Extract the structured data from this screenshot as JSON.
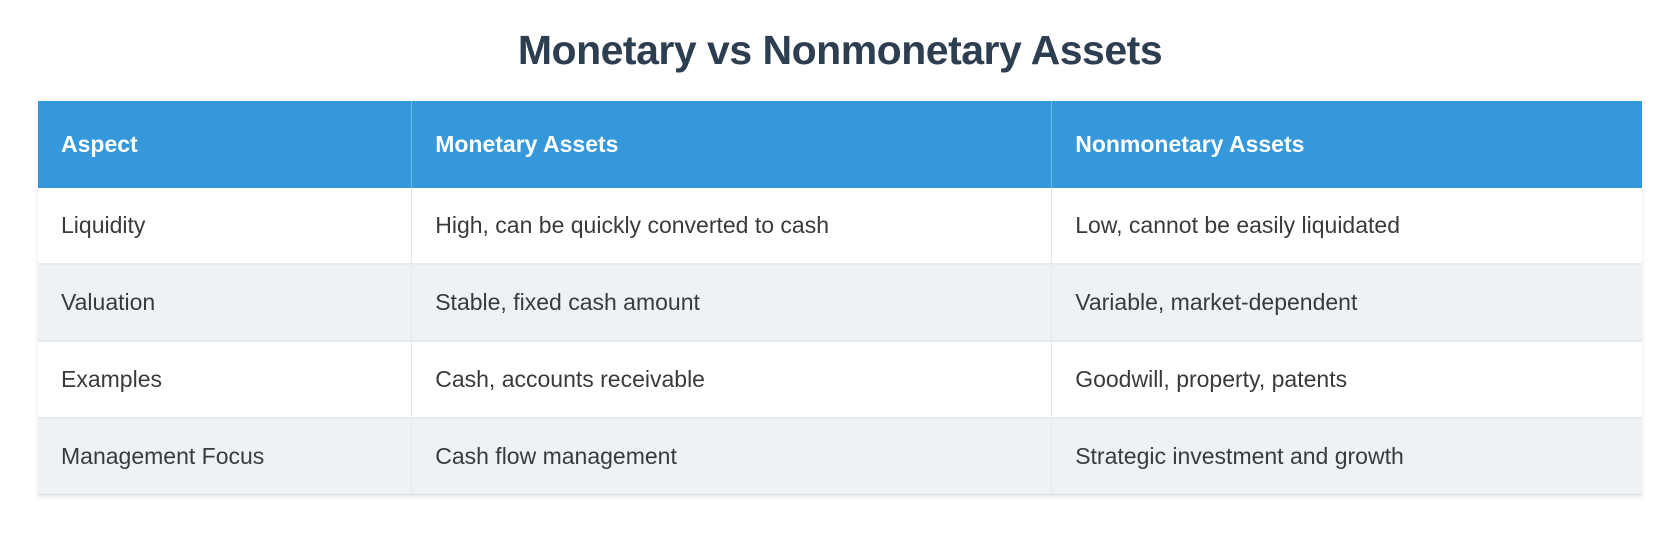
{
  "title": "Monetary vs Nonmonetary Assets",
  "colors": {
    "page_bg": "#ffffff",
    "title_text": "#2c3e50",
    "header_bg": "#3498db",
    "header_text": "#ffffff",
    "body_text": "#383b3e",
    "stripe_bg": "#eef2f6"
  },
  "chart_data": {
    "type": "table",
    "title": "Monetary vs Nonmonetary Assets",
    "columns": [
      "Aspect",
      "Monetary Assets",
      "Nonmonetary Assets"
    ],
    "rows": [
      [
        "Liquidity",
        "High, can be quickly converted to cash",
        "Low, cannot be easily liquidated"
      ],
      [
        "Valuation",
        "Stable, fixed cash amount",
        "Variable, market-dependent"
      ],
      [
        "Examples",
        "Cash, accounts receivable",
        "Goodwill, property, patents"
      ],
      [
        "Management Focus",
        "Cash flow management",
        "Strategic investment and growth"
      ]
    ],
    "layout_hints": {
      "header_row_highlighted": true,
      "zebra_striping": true,
      "column_width_pct": [
        23.3,
        39.9,
        36.8
      ]
    }
  }
}
